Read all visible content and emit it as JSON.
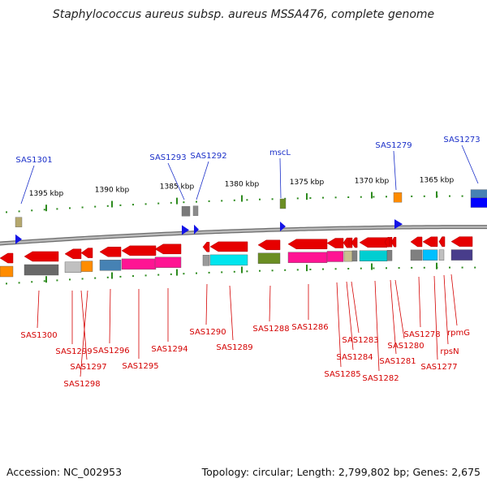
{
  "title": "Staphylococcus aureus subsp. aureus MSSA476, complete genome",
  "footer": {
    "accession": "Accession: NC_002953",
    "topology": "Topology: circular; Length: 2,799,802 bp; Genes: 2,675"
  },
  "colors": {
    "backbone": "#8f8f8f",
    "tick": "#2e8b1f",
    "forward_label": "#1a2fc9",
    "reverse_label": "#d40000",
    "arrow_forward": "#1414e6",
    "arrow_reverse": "#e60000"
  },
  "scale_labels": [
    "1395 kbp",
    "1390 kbp",
    "1385 kbp",
    "1380 kbp",
    "1375 kbp",
    "1370 kbp",
    "1365 kbp"
  ],
  "forward_genes": [
    "SAS1301",
    "SAS1293",
    "SAS1292",
    "mscL",
    "SAS1279",
    "SAS1273"
  ],
  "reverse_genes": [
    "SAS1300",
    "SAS1299",
    "SAS1297",
    "SAS1298",
    "SAS1296",
    "SAS1295",
    "SAS1294",
    "SAS1290",
    "SAS1289",
    "SAS1288",
    "SAS1286",
    "SAS1285",
    "SAS1284",
    "SAS1283",
    "SAS1282",
    "SAS1281",
    "SAS1280",
    "SAS1278",
    "SAS1277",
    "rpsN",
    "rpmG"
  ]
}
